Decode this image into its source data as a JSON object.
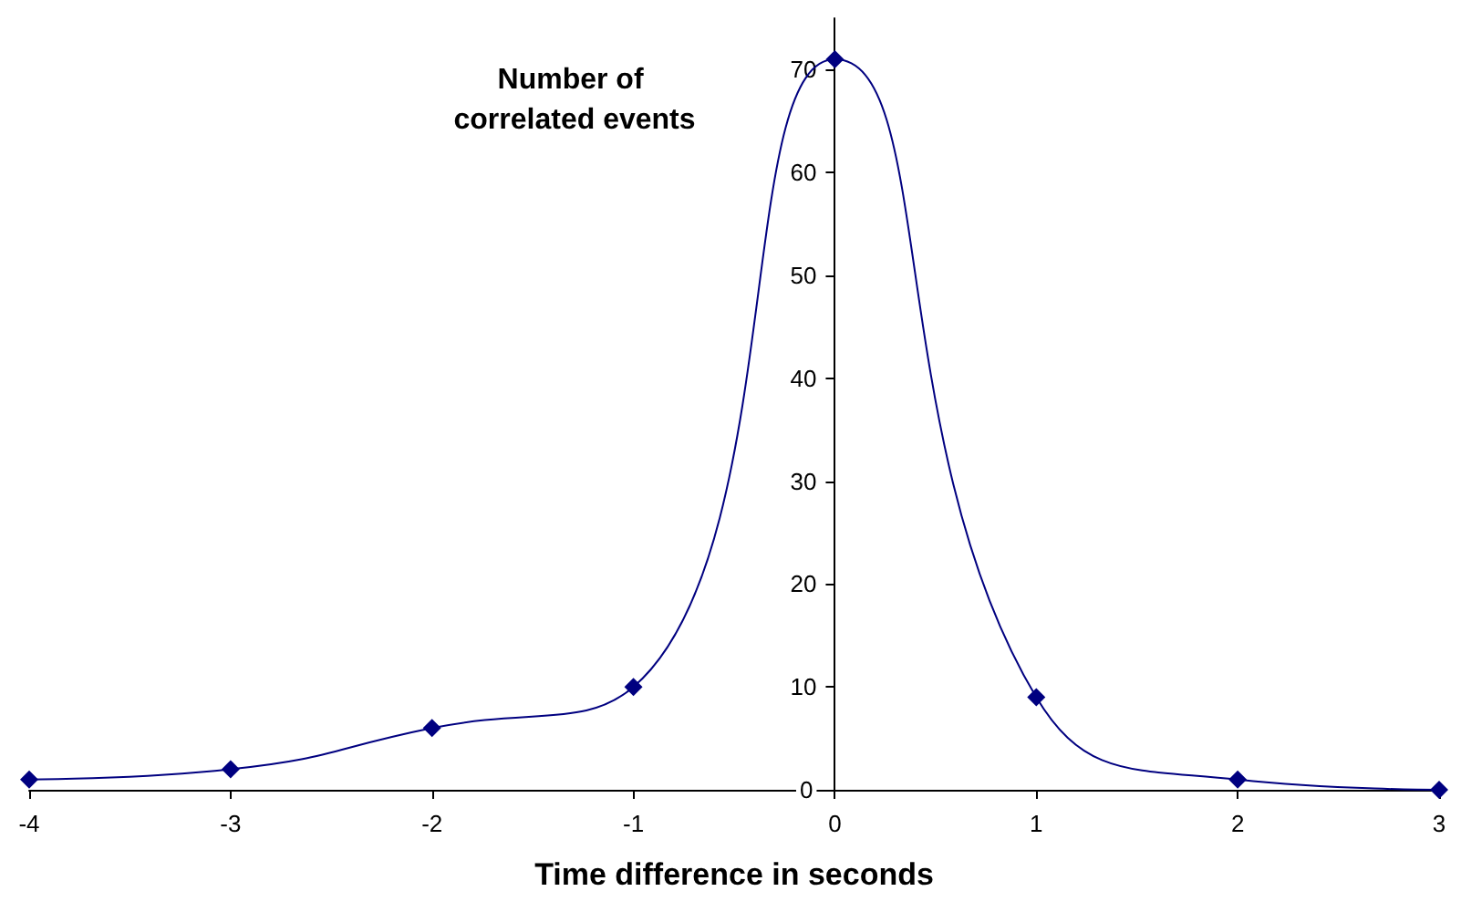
{
  "chart_data": {
    "type": "line",
    "xlabel": "Time difference in seconds",
    "ylabel": "Number of correlated events",
    "x": [
      -4,
      -3,
      -2,
      -1,
      0,
      1,
      2,
      3
    ],
    "series": [
      {
        "color": "#000080",
        "values": [
          1,
          2,
          6,
          10,
          71,
          9,
          1,
          0
        ]
      }
    ],
    "xlim": [
      -4,
      3
    ],
    "xticks": [
      -4,
      -3,
      -2,
      -1,
      0,
      1,
      2,
      3
    ],
    "ylim": [
      0,
      75
    ],
    "yticks": [
      0,
      10,
      20,
      30,
      40,
      50,
      60,
      70
    ],
    "grid": false,
    "marker": "diamond",
    "line_style": "solid"
  }
}
